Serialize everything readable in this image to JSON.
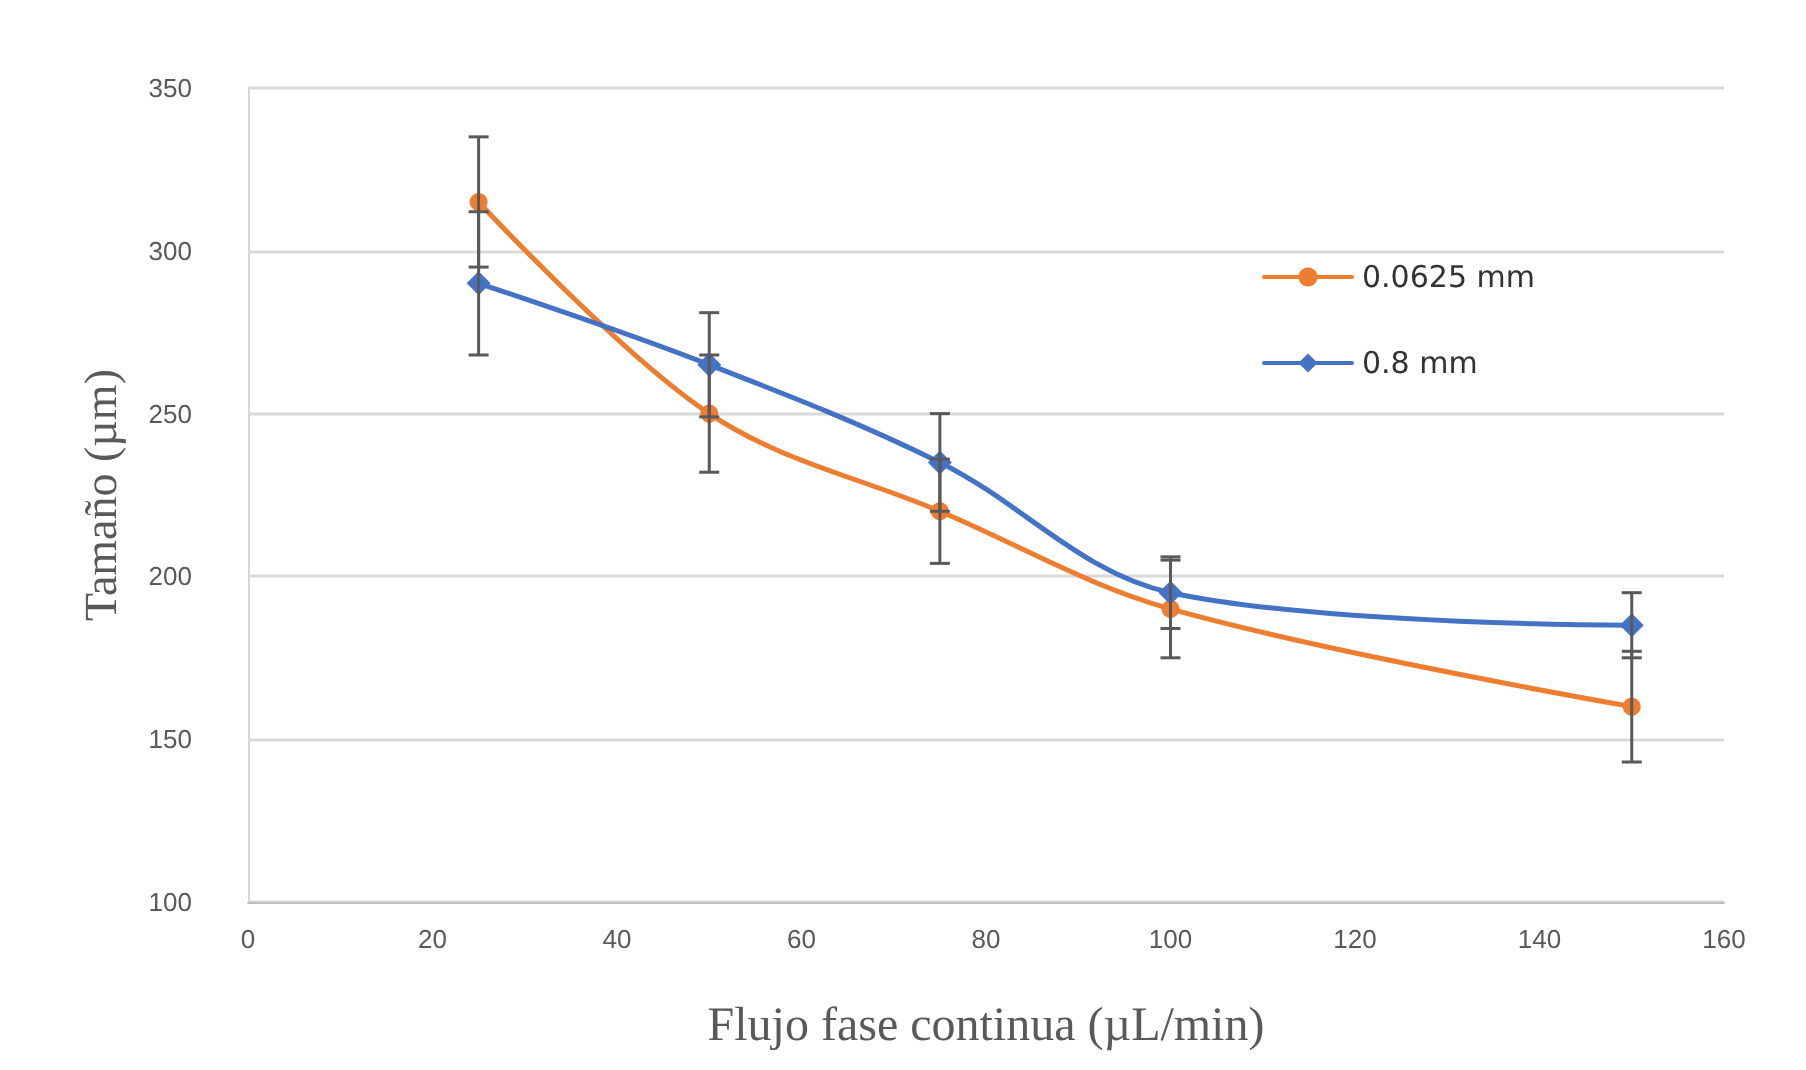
{
  "chart_data": {
    "type": "line",
    "xlabel": "Flujo fase continua (µL/min)",
    "ylabel": "Tamaño (µm)",
    "x": [
      25,
      50,
      75,
      100,
      150
    ],
    "series": [
      {
        "name": "0.0625 mm",
        "color": "#ed7d31",
        "values": [
          315,
          250,
          220,
          190,
          160
        ],
        "errors": [
          20,
          18,
          16,
          15,
          17
        ],
        "marker": "circle"
      },
      {
        "name": "0.8 mm",
        "color": "#4472c4",
        "values": [
          290,
          265,
          235,
          195,
          185
        ],
        "errors": [
          22,
          16,
          15,
          11,
          10
        ],
        "marker": "diamond"
      }
    ],
    "xlim": [
      0,
      160
    ],
    "xticks": [
      0,
      20,
      40,
      60,
      80,
      100,
      120,
      140,
      160
    ],
    "ylim": [
      100,
      350
    ],
    "yticks": [
      100,
      150,
      200,
      250,
      300,
      350
    ],
    "grid": "y",
    "legend": "top right"
  }
}
